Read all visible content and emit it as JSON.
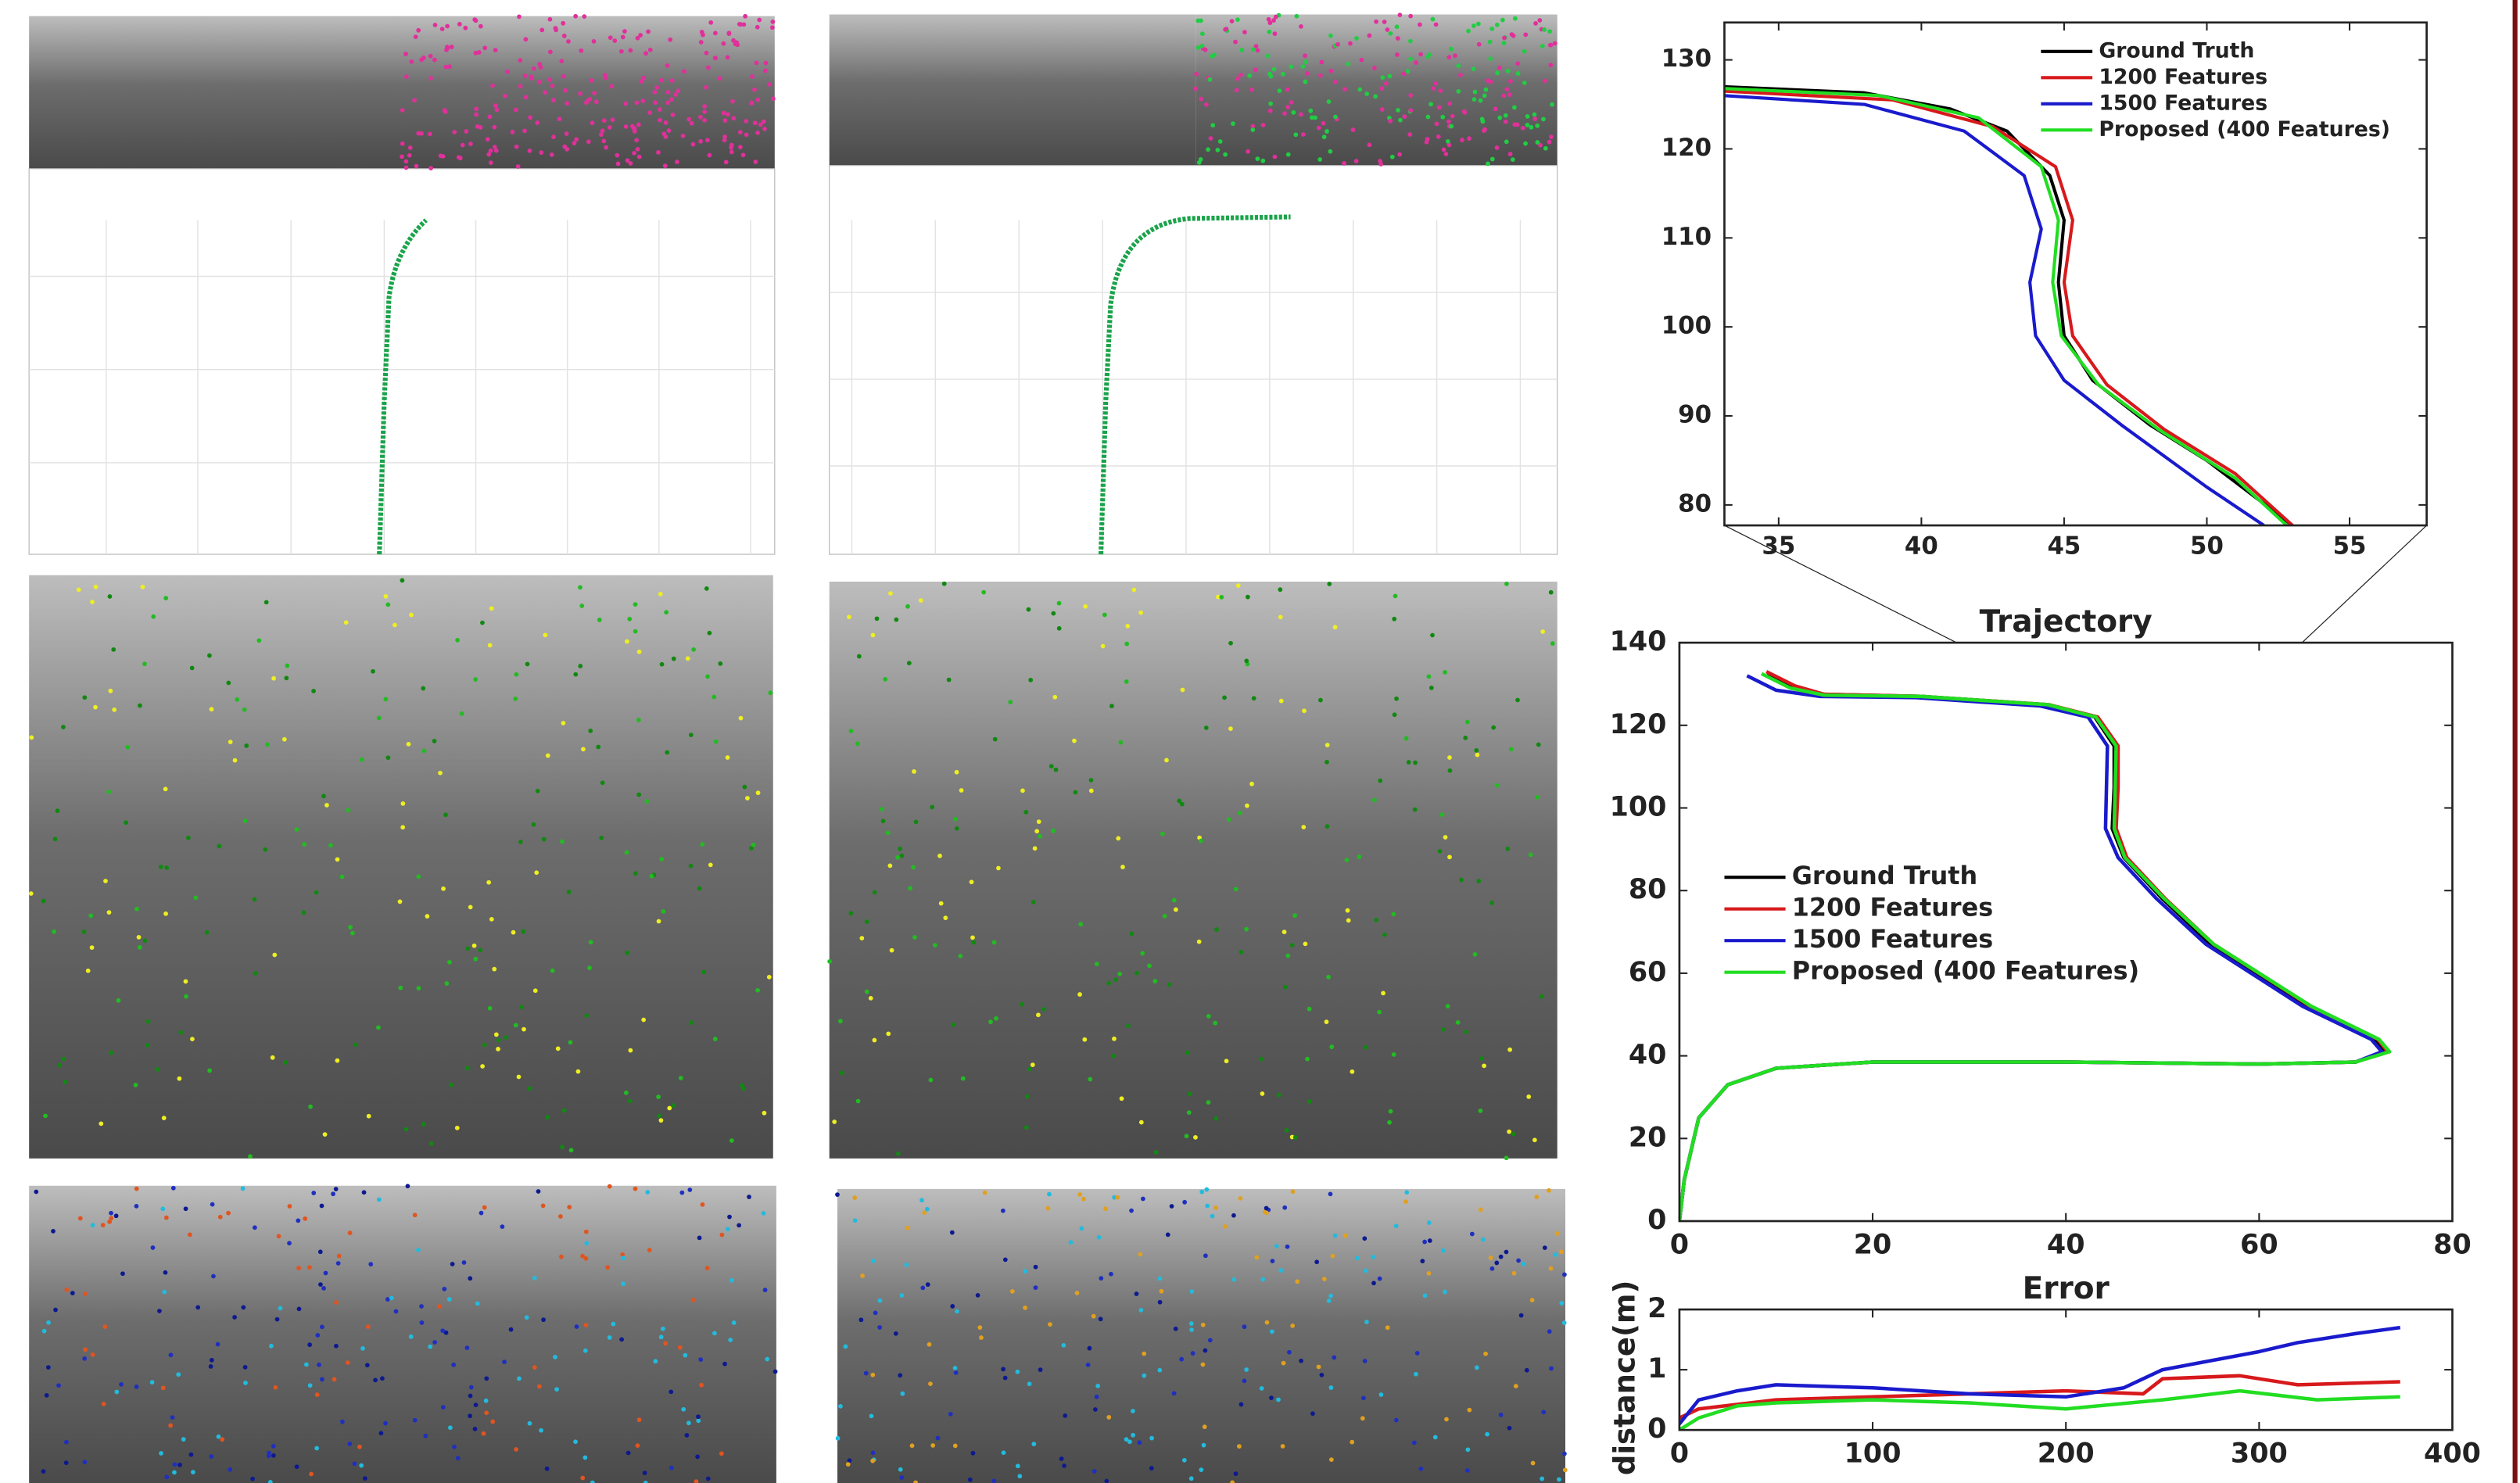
{
  "chart_data": [
    {
      "type": "line",
      "series": [
        {
          "name": "Ground Truth",
          "color": "#000000",
          "x": [
            33,
            38,
            41,
            43,
            44.5,
            45,
            44.8,
            45,
            46,
            48,
            50,
            53
          ],
          "values": [
            127,
            126.3,
            124.5,
            122,
            117,
            112,
            105,
            99,
            94,
            89,
            85,
            77.7
          ]
        },
        {
          "name": "1200 Features",
          "color": "#d7191c",
          "x": [
            33,
            39,
            42.5,
            44.7,
            45.3,
            45,
            45.3,
            46.5,
            48.5,
            51,
            53
          ],
          "values": [
            126.5,
            125.5,
            122.5,
            118,
            112,
            105,
            99,
            93.5,
            88.5,
            83.5,
            77.7
          ]
        },
        {
          "name": "1500 Features",
          "color": "#1a1acd",
          "x": [
            33,
            38,
            41.5,
            43.6,
            44.2,
            43.8,
            44,
            45,
            47,
            50,
            52
          ],
          "values": [
            126,
            125,
            122,
            117,
            111,
            105,
            99,
            94,
            89,
            82,
            77.7
          ]
        },
        {
          "name": "Proposed (400 Features)",
          "color": "#22dd22",
          "x": [
            33,
            38.5,
            42,
            44.2,
            44.8,
            44.6,
            44.9,
            46.2,
            48.3,
            51,
            52.8
          ],
          "values": [
            126.8,
            126,
            123.5,
            118,
            112,
            105,
            99,
            93.5,
            88.5,
            83,
            77.7
          ]
        }
      ],
      "xlim": [
        33.1,
        57.7
      ],
      "ylim": [
        77.7,
        134.2
      ],
      "xticks": [
        35,
        40,
        45,
        50,
        55
      ],
      "yticks": [
        80,
        90,
        100,
        110,
        120,
        130
      ],
      "legend": "upper right"
    },
    {
      "type": "line",
      "title": "Trajectory",
      "series": [
        {
          "name": "Ground Truth",
          "color": "#000000",
          "x": [
            0,
            0.5,
            2,
            5,
            10,
            20,
            40,
            60,
            70,
            73,
            72,
            65,
            55,
            50,
            46,
            44.8,
            45,
            45,
            43,
            38,
            25,
            15,
            12,
            9
          ],
          "values": [
            0,
            10,
            25,
            33,
            37,
            38.5,
            38.5,
            38,
            38.5,
            41,
            44,
            52,
            67,
            78,
            88,
            95,
            105,
            115,
            122,
            125,
            127,
            127.5,
            129,
            132
          ]
        },
        {
          "name": "1200 Features",
          "color": "#d7191c",
          "x": [
            0,
            0.5,
            2,
            5,
            10,
            20,
            40,
            60,
            70,
            73.3,
            72.3,
            65.3,
            55.3,
            50.3,
            46.3,
            45.2,
            45.4,
            45.4,
            43.3,
            38.2,
            25,
            15,
            12,
            9
          ],
          "values": [
            0,
            10,
            25,
            33,
            37,
            38.5,
            38.5,
            38,
            38.5,
            41,
            44,
            52,
            67,
            78,
            88,
            95,
            105,
            115,
            122,
            125,
            127,
            127.5,
            129.5,
            133
          ]
        },
        {
          "name": "1500 Features",
          "color": "#1a1acd",
          "x": [
            0,
            0.5,
            2,
            5,
            10,
            20,
            40,
            60,
            70,
            72.7,
            71.6,
            64.5,
            54.5,
            49.4,
            45.4,
            44.1,
            44.2,
            44.3,
            42.3,
            37.3,
            24.5,
            14.5,
            10,
            7
          ],
          "values": [
            0,
            10,
            25,
            33,
            37,
            38.5,
            38.5,
            38,
            38.5,
            41,
            44,
            52,
            67,
            78,
            88,
            95,
            105,
            115,
            122,
            124.7,
            126.7,
            127,
            128.5,
            132
          ]
        },
        {
          "name": "Proposed (400 Features)",
          "color": "#22dd22",
          "x": [
            0,
            0.5,
            2,
            5,
            10,
            20,
            40,
            60,
            70,
            73.5,
            72.4,
            65.4,
            55.3,
            50.2,
            46.1,
            45,
            45.1,
            45.2,
            43.1,
            38.1,
            25,
            15,
            11.5,
            8.5
          ],
          "values": [
            0,
            10,
            25,
            33,
            37,
            38.5,
            38.5,
            38,
            38.5,
            41,
            44,
            52,
            67,
            78,
            88,
            95,
            105,
            115,
            122,
            125,
            127,
            127.3,
            129,
            132.5
          ]
        }
      ],
      "xlim": [
        0,
        80
      ],
      "ylim": [
        0,
        140
      ],
      "xticks": [
        0,
        20,
        40,
        60,
        80
      ],
      "yticks": [
        0,
        20,
        40,
        60,
        80,
        100,
        120,
        140
      ],
      "legend": "center left"
    },
    {
      "type": "line",
      "title": "Error",
      "ylabel": "distance(m)",
      "series": [
        {
          "name": "1200 Features",
          "color": "#d7191c",
          "x": [
            0,
            10,
            50,
            100,
            150,
            200,
            240,
            250,
            290,
            320,
            373
          ],
          "values": [
            0.2,
            0.35,
            0.5,
            0.55,
            0.6,
            0.65,
            0.6,
            0.85,
            0.9,
            0.75,
            0.8
          ]
        },
        {
          "name": "1500 Features",
          "color": "#1a1acd",
          "x": [
            0,
            10,
            30,
            50,
            100,
            150,
            200,
            230,
            250,
            300,
            320,
            350,
            373
          ],
          "values": [
            0.1,
            0.5,
            0.65,
            0.75,
            0.7,
            0.6,
            0.55,
            0.7,
            1.0,
            1.3,
            1.45,
            1.6,
            1.7
          ]
        },
        {
          "name": "Proposed (400 Features)",
          "color": "#22dd22",
          "x": [
            0,
            10,
            30,
            50,
            100,
            150,
            200,
            250,
            290,
            330,
            373
          ],
          "values": [
            0,
            0.2,
            0.4,
            0.45,
            0.5,
            0.45,
            0.35,
            0.5,
            0.65,
            0.5,
            0.55
          ]
        }
      ],
      "xlim": [
        0,
        400
      ],
      "ylim": [
        0,
        2
      ],
      "xticks": [
        0,
        100,
        200,
        300,
        400
      ],
      "yticks": [
        0,
        1,
        2
      ]
    }
  ]
}
